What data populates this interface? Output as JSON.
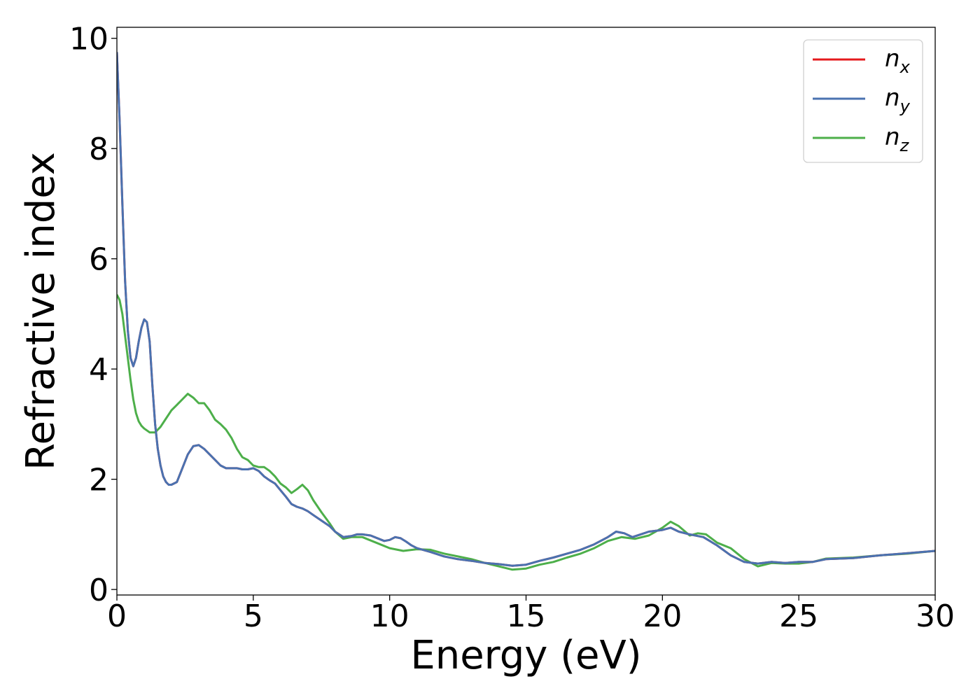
{
  "chart_data": {
    "type": "line",
    "title": "",
    "xlabel": "Energy (eV)",
    "ylabel": "Refractive index",
    "xlim": [
      0,
      30
    ],
    "ylim": [
      -0.1,
      10.2
    ],
    "xticks": [
      0,
      5,
      10,
      15,
      20,
      25,
      30
    ],
    "yticks": [
      0,
      2,
      4,
      6,
      8,
      10
    ],
    "xtick_labels": [
      "0",
      "5",
      "10",
      "15",
      "20",
      "25",
      "30"
    ],
    "ytick_labels": [
      "0",
      "2",
      "4",
      "6",
      "8",
      "10"
    ],
    "grid": false,
    "legend_position": "top-right",
    "series": [
      {
        "name": "n",
        "subscript": "x",
        "color": "#e41a1c",
        "x": [
          0,
          0.1,
          0.2,
          0.3,
          0.4,
          0.5,
          0.6,
          0.7,
          0.8,
          0.9,
          1.0,
          1.1,
          1.2,
          1.3,
          1.4,
          1.5,
          1.6,
          1.7,
          1.8,
          1.9,
          2.0,
          2.2,
          2.4,
          2.6,
          2.8,
          3.0,
          3.2,
          3.4,
          3.6,
          3.8,
          4.0,
          4.2,
          4.4,
          4.6,
          4.8,
          5.0,
          5.2,
          5.4,
          5.6,
          5.8,
          6.0,
          6.2,
          6.4,
          6.6,
          6.8,
          7.0,
          7.2,
          7.5,
          7.8,
          8.0,
          8.3,
          8.6,
          8.8,
          9.0,
          9.3,
          9.6,
          9.8,
          10.0,
          10.2,
          10.4,
          10.6,
          10.8,
          11.0,
          11.5,
          12.0,
          12.5,
          13.0,
          13.5,
          14.0,
          14.5,
          15.0,
          15.5,
          16.0,
          16.5,
          17.0,
          17.5,
          18.0,
          18.3,
          18.6,
          18.9,
          19.2,
          19.5,
          20.0,
          20.3,
          20.6,
          21.0,
          21.5,
          22.0,
          22.5,
          23.0,
          23.5,
          24.0,
          24.5,
          25.0,
          25.5,
          26.0,
          27.0,
          28.0,
          29.0,
          30.0
        ],
        "values": [
          9.75,
          8.5,
          7.0,
          5.6,
          4.7,
          4.2,
          4.05,
          4.2,
          4.5,
          4.75,
          4.9,
          4.85,
          4.5,
          3.7,
          3.0,
          2.55,
          2.25,
          2.05,
          1.95,
          1.9,
          1.9,
          1.95,
          2.2,
          2.45,
          2.6,
          2.62,
          2.55,
          2.45,
          2.35,
          2.25,
          2.2,
          2.2,
          2.2,
          2.18,
          2.18,
          2.2,
          2.15,
          2.05,
          1.98,
          1.92,
          1.8,
          1.68,
          1.55,
          1.5,
          1.47,
          1.42,
          1.35,
          1.25,
          1.15,
          1.05,
          0.95,
          0.97,
          1.0,
          1.0,
          0.98,
          0.92,
          0.88,
          0.9,
          0.95,
          0.93,
          0.87,
          0.8,
          0.75,
          0.68,
          0.6,
          0.55,
          0.52,
          0.48,
          0.46,
          0.43,
          0.45,
          0.52,
          0.58,
          0.65,
          0.72,
          0.82,
          0.95,
          1.05,
          1.02,
          0.95,
          1.0,
          1.05,
          1.08,
          1.12,
          1.05,
          1.0,
          0.95,
          0.8,
          0.62,
          0.5,
          0.47,
          0.5,
          0.48,
          0.5,
          0.5,
          0.55,
          0.57,
          0.62,
          0.66,
          0.7
        ]
      },
      {
        "name": "n",
        "subscript": "y",
        "color": "#4a72b0",
        "x": [
          0,
          0.1,
          0.2,
          0.3,
          0.4,
          0.5,
          0.6,
          0.7,
          0.8,
          0.9,
          1.0,
          1.1,
          1.2,
          1.3,
          1.4,
          1.5,
          1.6,
          1.7,
          1.8,
          1.9,
          2.0,
          2.2,
          2.4,
          2.6,
          2.8,
          3.0,
          3.2,
          3.4,
          3.6,
          3.8,
          4.0,
          4.2,
          4.4,
          4.6,
          4.8,
          5.0,
          5.2,
          5.4,
          5.6,
          5.8,
          6.0,
          6.2,
          6.4,
          6.6,
          6.8,
          7.0,
          7.2,
          7.5,
          7.8,
          8.0,
          8.3,
          8.6,
          8.8,
          9.0,
          9.3,
          9.6,
          9.8,
          10.0,
          10.2,
          10.4,
          10.6,
          10.8,
          11.0,
          11.5,
          12.0,
          12.5,
          13.0,
          13.5,
          14.0,
          14.5,
          15.0,
          15.5,
          16.0,
          16.5,
          17.0,
          17.5,
          18.0,
          18.3,
          18.6,
          18.9,
          19.2,
          19.5,
          20.0,
          20.3,
          20.6,
          21.0,
          21.5,
          22.0,
          22.5,
          23.0,
          23.5,
          24.0,
          24.5,
          25.0,
          25.5,
          26.0,
          27.0,
          28.0,
          29.0,
          30.0
        ],
        "values": [
          9.75,
          8.5,
          7.0,
          5.6,
          4.7,
          4.2,
          4.05,
          4.2,
          4.5,
          4.75,
          4.9,
          4.85,
          4.5,
          3.7,
          3.0,
          2.55,
          2.25,
          2.05,
          1.95,
          1.9,
          1.9,
          1.95,
          2.2,
          2.45,
          2.6,
          2.62,
          2.55,
          2.45,
          2.35,
          2.25,
          2.2,
          2.2,
          2.2,
          2.18,
          2.18,
          2.2,
          2.15,
          2.05,
          1.98,
          1.92,
          1.8,
          1.68,
          1.55,
          1.5,
          1.47,
          1.42,
          1.35,
          1.25,
          1.15,
          1.05,
          0.95,
          0.97,
          1.0,
          1.0,
          0.98,
          0.92,
          0.88,
          0.9,
          0.95,
          0.93,
          0.87,
          0.8,
          0.75,
          0.68,
          0.6,
          0.55,
          0.52,
          0.48,
          0.46,
          0.43,
          0.45,
          0.52,
          0.58,
          0.65,
          0.72,
          0.82,
          0.95,
          1.05,
          1.02,
          0.95,
          1.0,
          1.05,
          1.08,
          1.12,
          1.05,
          1.0,
          0.95,
          0.8,
          0.62,
          0.5,
          0.47,
          0.5,
          0.48,
          0.5,
          0.5,
          0.55,
          0.57,
          0.62,
          0.66,
          0.7
        ]
      },
      {
        "name": "n",
        "subscript": "z",
        "color": "#4daf4a",
        "x": [
          0,
          0.1,
          0.2,
          0.3,
          0.4,
          0.5,
          0.6,
          0.7,
          0.8,
          0.9,
          1.0,
          1.2,
          1.4,
          1.6,
          1.8,
          2.0,
          2.2,
          2.4,
          2.6,
          2.8,
          3.0,
          3.2,
          3.4,
          3.6,
          3.8,
          4.0,
          4.2,
          4.4,
          4.6,
          4.8,
          5.0,
          5.2,
          5.4,
          5.6,
          5.8,
          6.0,
          6.2,
          6.4,
          6.6,
          6.8,
          7.0,
          7.2,
          7.5,
          7.8,
          8.0,
          8.3,
          8.6,
          9.0,
          9.5,
          10.0,
          10.5,
          11.0,
          11.5,
          12.0,
          12.5,
          13.0,
          13.5,
          14.0,
          14.5,
          15.0,
          15.5,
          16.0,
          16.5,
          17.0,
          17.5,
          18.0,
          18.5,
          19.0,
          19.5,
          20.0,
          20.3,
          20.6,
          21.0,
          21.3,
          21.6,
          22.0,
          22.5,
          23.0,
          23.5,
          24.0,
          24.5,
          25.0,
          25.5,
          26.0,
          27.0,
          28.0,
          29.0,
          30.0
        ],
        "values": [
          5.35,
          5.25,
          5.0,
          4.6,
          4.2,
          3.8,
          3.45,
          3.2,
          3.05,
          2.97,
          2.92,
          2.85,
          2.85,
          2.95,
          3.1,
          3.25,
          3.35,
          3.45,
          3.55,
          3.48,
          3.38,
          3.38,
          3.25,
          3.08,
          3.0,
          2.9,
          2.75,
          2.55,
          2.4,
          2.35,
          2.25,
          2.22,
          2.22,
          2.15,
          2.05,
          1.92,
          1.85,
          1.75,
          1.82,
          1.9,
          1.8,
          1.62,
          1.4,
          1.2,
          1.05,
          0.92,
          0.95,
          0.95,
          0.85,
          0.75,
          0.7,
          0.73,
          0.72,
          0.65,
          0.6,
          0.55,
          0.48,
          0.42,
          0.36,
          0.38,
          0.45,
          0.5,
          0.58,
          0.65,
          0.75,
          0.88,
          0.95,
          0.92,
          0.98,
          1.12,
          1.23,
          1.15,
          0.98,
          1.02,
          1.0,
          0.85,
          0.75,
          0.55,
          0.42,
          0.48,
          0.47,
          0.47,
          0.5,
          0.56,
          0.58,
          0.62,
          0.65,
          0.7
        ]
      }
    ]
  }
}
